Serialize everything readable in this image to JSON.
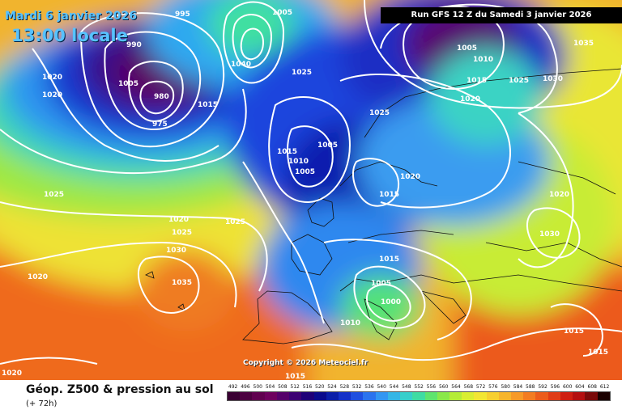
{
  "header": {
    "date_line": "Mardi 6 janvier 2026",
    "time_line": "13:00 locale",
    "run_banner": "Run GFS 12 Z du Samedi 3 janvier 2026"
  },
  "footer": {
    "title": "Géop. Z500 & pression au sol",
    "subtitle": "(+ 72h)",
    "copyright": "Copyright © 2026 Meteociel.fr"
  },
  "legend": {
    "values": [
      "492",
      "496",
      "500",
      "504",
      "508",
      "512",
      "516",
      "520",
      "524",
      "528",
      "532",
      "536",
      "540",
      "544",
      "548",
      "552",
      "556",
      "560",
      "564",
      "568",
      "572",
      "576",
      "580",
      "584",
      "588",
      "592",
      "596",
      "600",
      "604",
      "608",
      "612"
    ],
    "colors": [
      "#3a0033",
      "#4c0040",
      "#60004f",
      "#6e005e",
      "#55006a",
      "#3c0073",
      "#1e0078",
      "#0a0a8c",
      "#0b1ea8",
      "#1430c8",
      "#1f4fe0",
      "#2b73ee",
      "#3296f2",
      "#35b6e6",
      "#37cfcb",
      "#3fdca3",
      "#5fe46e",
      "#8ae84a",
      "#b5ec37",
      "#d9ee32",
      "#f2e633",
      "#f7cf30",
      "#f7b52c",
      "#f79a28",
      "#f37c22",
      "#ec5c1c",
      "#e03c16",
      "#cf1f12",
      "#b40f10",
      "#7a0a0a",
      "#1a0000"
    ]
  },
  "isobars": [
    "995",
    "1005",
    "1035",
    "990",
    "1020",
    "1020",
    "1005",
    "1040",
    "1025",
    "1005",
    "1010",
    "1015",
    "1025",
    "1030",
    "980",
    "1015",
    "1020",
    "975",
    "1025",
    "1015",
    "1005",
    "1010",
    "1005",
    "1020",
    "1015",
    "1020",
    "1025",
    "1025",
    "1020",
    "1030",
    "1030",
    "1025",
    "1015",
    "1020",
    "1005",
    "1035",
    "1000",
    "1010",
    "1015",
    "1015",
    "1020",
    "1015"
  ]
}
